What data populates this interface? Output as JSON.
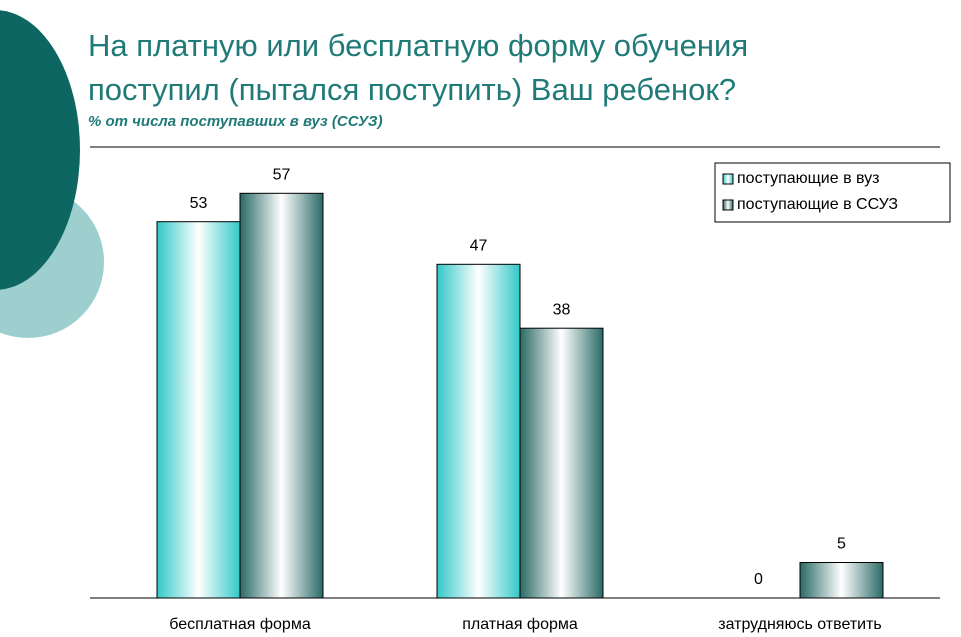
{
  "chart_data": {
    "type": "bar",
    "title": [
      "На платную или бесплатную форму обучения",
      "поступил (пытался поступить) Ваш ребенок?"
    ],
    "subtitle": "% от числа поступавших в вуз (ССУЗ)",
    "categories": [
      "бесплатная форма",
      "платная форма",
      "затрудняюсь ответить"
    ],
    "series": [
      {
        "name": "поступающие в вуз",
        "color": "#33c8c8",
        "values": [
          53,
          47,
          0
        ]
      },
      {
        "name": "поступающие в ССУЗ",
        "color": "#2a6a66",
        "values": [
          57,
          38,
          5
        ]
      }
    ],
    "ylim": [
      0,
      60
    ],
    "legend": "upper right"
  }
}
